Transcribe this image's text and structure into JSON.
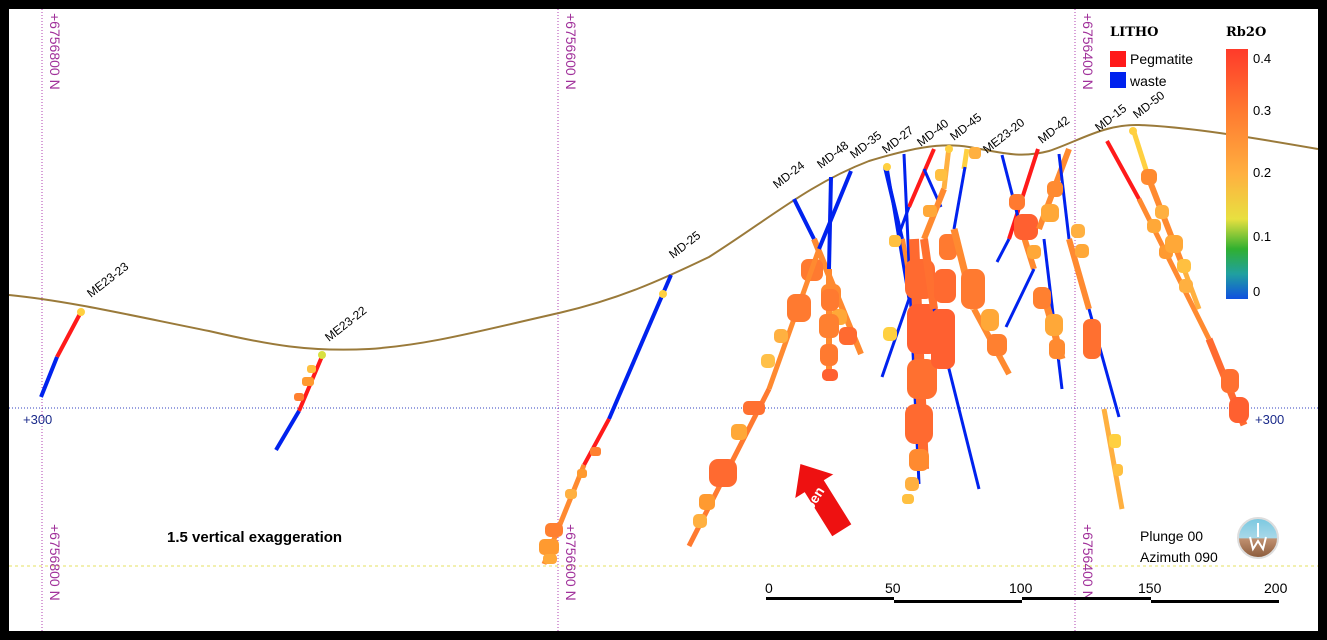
{
  "northing_labels": [
    "+6756800 N",
    "+6756600 N",
    "+6756400 N"
  ],
  "elevation_label": "+300",
  "holes": [
    {
      "name": "ME23-23"
    },
    {
      "name": "ME23-22"
    },
    {
      "name": "MD-25"
    },
    {
      "name": "MD-24"
    },
    {
      "name": "MD-48"
    },
    {
      "name": "MD-35"
    },
    {
      "name": "MD-27"
    },
    {
      "name": "MD-40"
    },
    {
      "name": "MD-45"
    },
    {
      "name": "ME23-20"
    },
    {
      "name": "MD-42"
    },
    {
      "name": "MD-15"
    },
    {
      "name": "MD-50"
    }
  ],
  "legend": {
    "litho_title": "LITHO",
    "litho_items": [
      {
        "label": "Pegmatite",
        "color": "#ff1a1a"
      },
      {
        "label": "waste",
        "color": "#0022ee"
      }
    ],
    "rb2o_title": "Rb2O",
    "rb2o_ticks": [
      "0.4",
      "0.3",
      "0.2",
      "0.1",
      "0"
    ]
  },
  "open_label": "Open",
  "exaggeration_note": "1.5 vertical exaggeration",
  "orientation": {
    "plunge": "Plunge 00",
    "azimuth": "Azimuth 090"
  },
  "scale_bar": {
    "ticks": [
      "0",
      "50",
      "100",
      "150",
      "200"
    ]
  },
  "colors": {
    "pegmatite": "#ff1a1a",
    "waste": "#0022ee",
    "topography": "#9a7a3a",
    "northing_grid": "#b040b0",
    "elevation_grid": "#3040c0",
    "bottom_grid": "#e6e060"
  }
}
